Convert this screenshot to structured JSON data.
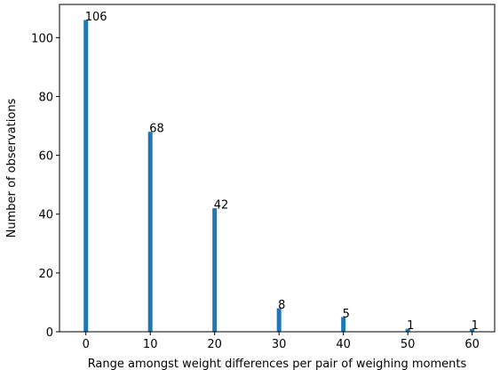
{
  "chart_data": {
    "type": "bar",
    "title": "",
    "xlabel": "Range amongst weight differences per pair of weighing moments",
    "ylabel": "Number of observations",
    "x": [
      0,
      10,
      20,
      30,
      40,
      50,
      60
    ],
    "values": [
      106,
      68,
      42,
      8,
      5,
      1,
      1
    ],
    "data_labels": [
      "106",
      "68",
      "42",
      "8",
      "5",
      "1",
      "1"
    ],
    "xlim": [
      -4.1,
      63.5
    ],
    "ylim": [
      0,
      111.3
    ],
    "xticks": [
      0,
      10,
      20,
      30,
      40,
      50,
      60
    ],
    "xtick_labels": [
      "0",
      "10",
      "20",
      "30",
      "40",
      "50",
      "60"
    ],
    "yticks": [
      0,
      20,
      40,
      60,
      80,
      100
    ],
    "ytick_labels": [
      "0",
      "20",
      "40",
      "60",
      "80",
      "100"
    ],
    "bar_color": "#1f77b4",
    "grid": false,
    "legend": "none"
  }
}
